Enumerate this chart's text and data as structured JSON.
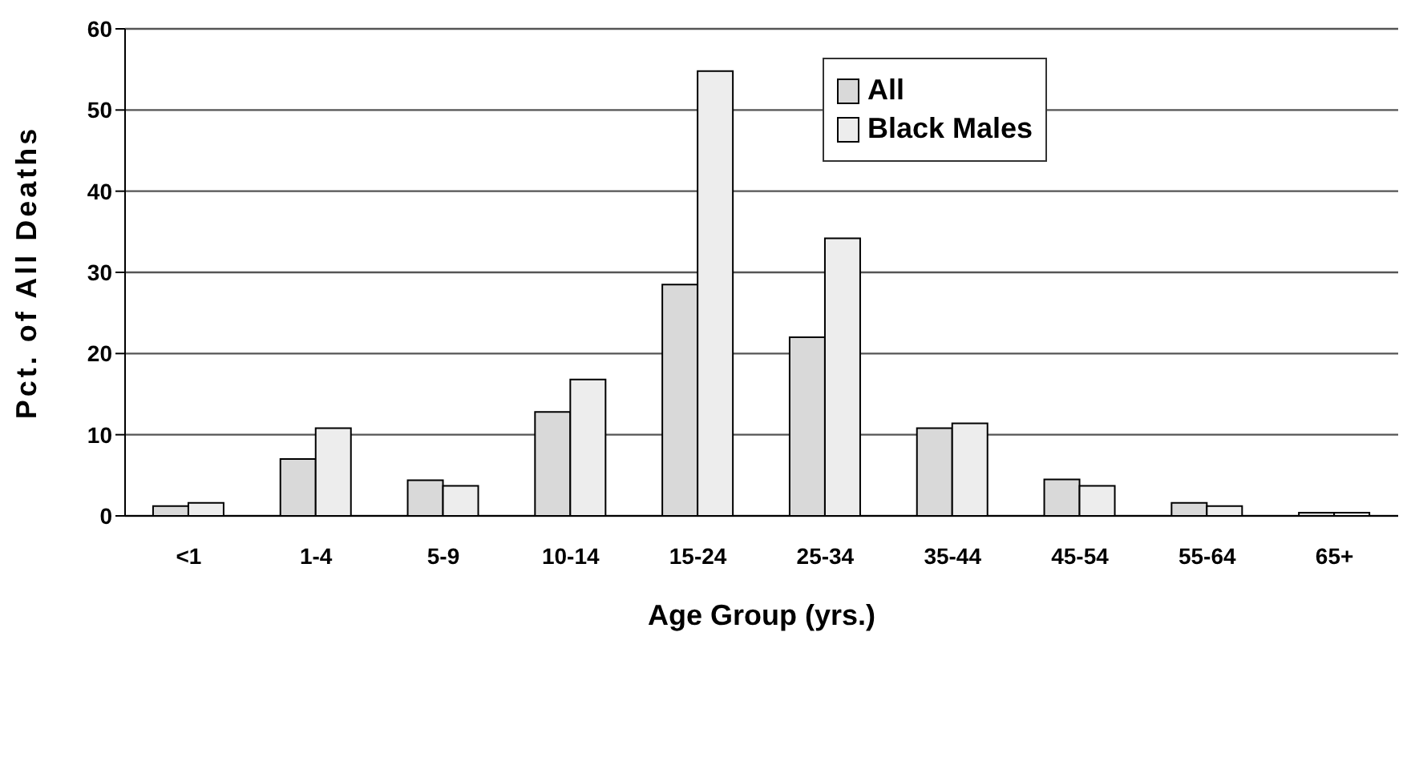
{
  "chart_data": {
    "type": "bar",
    "xlabel": "Age Group (yrs.)",
    "ylabel": "Pct. of All Deaths",
    "categories": [
      "<1",
      "1-4",
      "5-9",
      "10-14",
      "15-24",
      "25-34",
      "35-44",
      "45-54",
      "55-64",
      "65+"
    ],
    "series": [
      {
        "name": "All",
        "color": "#d9d9d9",
        "values": [
          1.2,
          7.0,
          4.4,
          12.8,
          28.5,
          22.0,
          10.8,
          4.5,
          1.6,
          0.4
        ]
      },
      {
        "name": "Black Males",
        "color": "#ededed",
        "values": [
          1.6,
          10.8,
          3.7,
          16.8,
          54.8,
          34.2,
          11.4,
          3.7,
          1.2,
          0.4
        ]
      }
    ],
    "ylim": [
      0,
      60
    ],
    "yticks": [
      0,
      10,
      20,
      30,
      40,
      50,
      60
    ],
    "grid": "y",
    "legend": "top right"
  }
}
